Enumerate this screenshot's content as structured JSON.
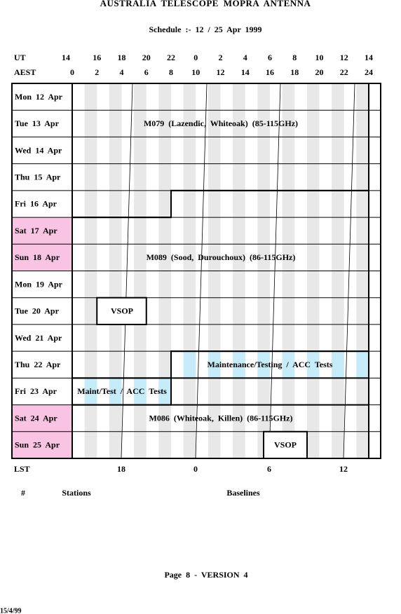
{
  "header": {
    "title": "AUSTRALIA TELESCOPE MOPRA ANTENNA",
    "subtitle": "Schedule :- 12 / 25 Apr 1999"
  },
  "ut_row": {
    "label": "UT",
    "ticks": [
      "14",
      "16",
      "18",
      "20",
      "22",
      "0",
      "2",
      "4",
      "6",
      "8",
      "10",
      "12",
      "14"
    ]
  },
  "aest_row": {
    "label": "AEST",
    "ticks": [
      "0",
      "2",
      "4",
      "6",
      "8",
      "10",
      "12",
      "14",
      "16",
      "18",
      "20",
      "22",
      "24"
    ]
  },
  "days": [
    "Mon 12 Apr",
    "Tue 13 Apr",
    "Wed 14 Apr",
    "Thu 15 Apr",
    "Fri 16 Apr",
    "Sat 17 Apr",
    "Sun 18 Apr",
    "Mon 19 Apr",
    "Tue 20 Apr",
    "Wed 21 Apr",
    "Thu 22 Apr",
    "Fri 23 Apr",
    "Sat 24 Apr",
    "Sun 25 Apr"
  ],
  "blocks": [
    "M079 (Lazendic, Whiteoak) (85-115GHz)",
    "M089 (Sood, Durouchoux) (86-115GHz)",
    "VSOP",
    "Maintenance/Testing / ACC Tests",
    "Maint/Test / ACC Tests",
    "M086 (Whiteoak, Killen) (86-115GHz)",
    "VSOP"
  ],
  "lst": {
    "label": "LST",
    "ticks": [
      "18",
      "0",
      "6",
      "12"
    ]
  },
  "footer": {
    "columns": [
      "#",
      "Stations",
      "Baselines"
    ],
    "page": "Page 8 - VERSION 4",
    "date": "15/4/99"
  }
}
